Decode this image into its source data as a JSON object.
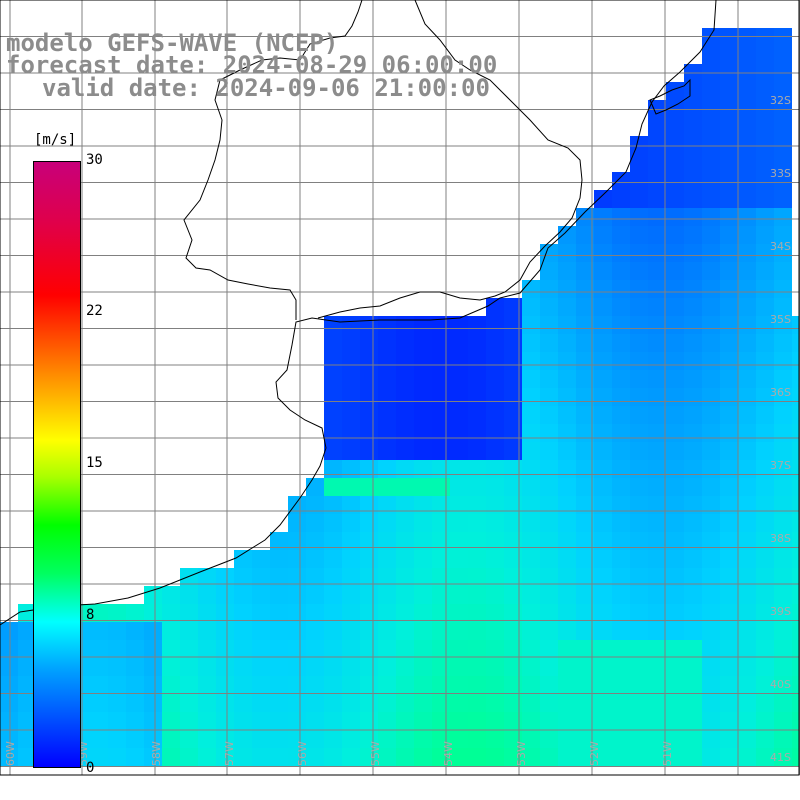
{
  "title": {
    "model": "modelo GEFS-WAVE (NCEP)",
    "forecast": "forecast date: 2024-08-29 06:00:00",
    "valid": "valid date: 2024-09-06 21:00:00"
  },
  "colorbar": {
    "unit": "[m/s]",
    "ticks": [
      "30",
      "22",
      "15",
      "8",
      "0"
    ],
    "colors": [
      "#0000ff",
      "#00a0ff",
      "#00ffff",
      "#00ff00",
      "#ffff00",
      "#ff8000",
      "#ff0000",
      "#c8007a"
    ]
  },
  "map": {
    "lat_labels": [
      "32S",
      "33S",
      "34S",
      "35S",
      "36S",
      "37S",
      "38S",
      "39S",
      "40S",
      "41S"
    ],
    "lon_labels": [
      "60W",
      "59W",
      "58W",
      "57W",
      "56W",
      "55W",
      "54W",
      "53W",
      "52W",
      "51W"
    ],
    "palette": {
      "land": "#ffffff",
      "coast": "#000000",
      "grid": "#808080",
      "arrow": "#ffffff"
    }
  }
}
